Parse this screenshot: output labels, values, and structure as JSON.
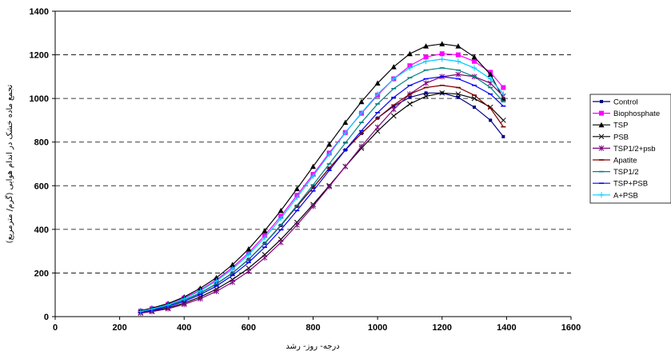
{
  "chart_data": {
    "type": "line",
    "title": "",
    "xlabel": "درجه- روز- رشد",
    "ylabel": "تجمع ماده خشک در اندام هوایی (گرم/ مترمربع)",
    "xlim": [
      0,
      1600
    ],
    "ylim": [
      0,
      1400
    ],
    "xticks": [
      0,
      200,
      400,
      600,
      800,
      1000,
      1200,
      1400,
      1600
    ],
    "yticks": [
      0,
      200,
      400,
      600,
      800,
      1000,
      1200,
      1400
    ],
    "grid": "horizontal dashed",
    "legend_position": "right",
    "x": [
      265,
      300,
      350,
      400,
      450,
      500,
      550,
      600,
      650,
      700,
      750,
      800,
      850,
      900,
      950,
      1000,
      1050,
      1100,
      1150,
      1200,
      1250,
      1300,
      1350,
      1390
    ],
    "series": [
      {
        "name": "Control",
        "color": "#000080",
        "marker": "square-small",
        "values": [
          22,
          32,
          50,
          76,
          108,
          150,
          200,
          262,
          336,
          418,
          506,
          592,
          680,
          764,
          840,
          910,
          965,
          1005,
          1025,
          1025,
          1005,
          960,
          900,
          825
        ]
      },
      {
        "name": "Biophosphate",
        "color": "#ff00ff",
        "marker": "square",
        "values": [
          25,
          36,
          56,
          85,
          122,
          168,
          225,
          292,
          372,
          460,
          556,
          652,
          750,
          844,
          932,
          1015,
          1090,
          1150,
          1190,
          1205,
          1200,
          1170,
          1120,
          1050
        ]
      },
      {
        "name": "TSP",
        "color": "#000000",
        "marker": "triangle",
        "values": [
          27,
          39,
          60,
          90,
          130,
          178,
          238,
          310,
          394,
          486,
          586,
          688,
          790,
          890,
          985,
          1070,
          1145,
          1205,
          1240,
          1250,
          1240,
          1190,
          1110,
          1000
        ]
      },
      {
        "name": "PSB",
        "color": "#000000",
        "marker": "x",
        "values": [
          18,
          26,
          40,
          62,
          90,
          126,
          170,
          222,
          284,
          354,
          432,
          514,
          600,
          688,
          772,
          850,
          920,
          975,
          1010,
          1025,
          1020,
          1000,
          960,
          900
        ]
      },
      {
        "name": "TSP1/2+psb",
        "color": "#800080",
        "marker": "asterisk",
        "values": [
          16,
          23,
          36,
          56,
          82,
          116,
          158,
          208,
          270,
          340,
          420,
          506,
          596,
          688,
          780,
          868,
          950,
          1020,
          1070,
          1100,
          1110,
          1100,
          1070,
          1010
        ]
      },
      {
        "name": "Apatite",
        "color": "#800000",
        "marker": "dash",
        "values": [
          22,
          32,
          50,
          76,
          108,
          150,
          200,
          262,
          336,
          418,
          506,
          592,
          680,
          764,
          840,
          910,
          970,
          1020,
          1050,
          1060,
          1050,
          1015,
          955,
          870
        ]
      },
      {
        "name": "TSP1/2",
        "color": "#008080",
        "marker": "dash",
        "values": [
          22,
          32,
          50,
          76,
          108,
          150,
          200,
          262,
          336,
          420,
          510,
          604,
          700,
          796,
          890,
          975,
          1045,
          1095,
          1130,
          1140,
          1130,
          1100,
          1050,
          985
        ]
      },
      {
        "name": "TSP+PSB",
        "color": "#0000ff",
        "marker": "dash",
        "values": [
          20,
          29,
          46,
          70,
          101,
          140,
          189,
          248,
          318,
          398,
          486,
          576,
          670,
          764,
          852,
          935,
          1005,
          1060,
          1090,
          1100,
          1090,
          1060,
          1020,
          965
        ]
      },
      {
        "name": "A+PSB",
        "color": "#00ccff",
        "marker": "plus",
        "values": [
          24,
          35,
          54,
          82,
          118,
          163,
          218,
          284,
          362,
          450,
          546,
          644,
          744,
          842,
          934,
          1020,
          1090,
          1140,
          1170,
          1180,
          1170,
          1140,
          1090,
          1020
        ]
      }
    ]
  }
}
